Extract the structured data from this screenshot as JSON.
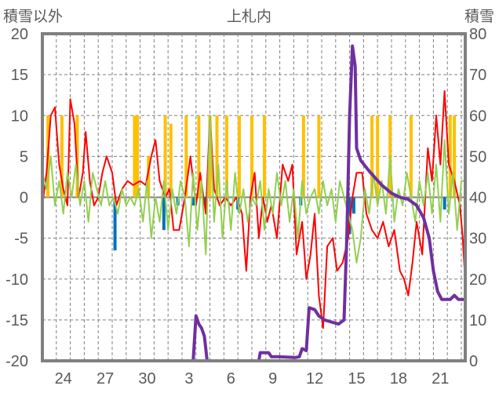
{
  "chart_data": {
    "type": "line",
    "title": "上札内",
    "ylabel_left": "積雪以外",
    "ylabel_right": "積雪",
    "ylim_left": [
      -20,
      20
    ],
    "ylim_right": [
      0,
      80
    ],
    "yticks_left": [
      "20",
      "15",
      "10",
      "5",
      "0",
      "-5",
      "-10",
      "-15",
      "-20"
    ],
    "yticks_right": [
      "80",
      "70",
      "60",
      "50",
      "40",
      "30",
      "20",
      "10",
      "0"
    ],
    "xlim_days": [
      0,
      30.3
    ],
    "xtick_labels": [
      {
        "x": 1.5,
        "label": "24"
      },
      {
        "x": 4.5,
        "label": "27"
      },
      {
        "x": 7.5,
        "label": "30"
      },
      {
        "x": 10.5,
        "label": "3"
      },
      {
        "x": 13.5,
        "label": "6"
      },
      {
        "x": 16.5,
        "label": "9"
      },
      {
        "x": 19.5,
        "label": "12"
      },
      {
        "x": 22.5,
        "label": "15"
      },
      {
        "x": 25.5,
        "label": "18"
      },
      {
        "x": 28.5,
        "label": "21"
      }
    ],
    "grid": true,
    "colors": {
      "red": "#ff0000",
      "green": "#92d050",
      "orange": "#ffc000",
      "blue": "#0070c0",
      "purple": "#7030a0",
      "frame": "#808080"
    },
    "series": [
      {
        "name": "red-series",
        "axis": "left",
        "color": "#ff0000",
        "points": [
          [
            0,
            -1
          ],
          [
            0.3,
            3
          ],
          [
            0.6,
            10
          ],
          [
            0.9,
            11
          ],
          [
            1.2,
            4
          ],
          [
            1.5,
            1
          ],
          [
            1.8,
            -1
          ],
          [
            2,
            12
          ],
          [
            2.3,
            9
          ],
          [
            2.6,
            0
          ],
          [
            2.9,
            3
          ],
          [
            3.1,
            8
          ],
          [
            3.4,
            2
          ],
          [
            3.7,
            -1
          ],
          [
            4,
            0
          ],
          [
            4.3,
            3
          ],
          [
            4.6,
            5
          ],
          [
            5,
            3
          ],
          [
            5.3,
            -1
          ],
          [
            5.7,
            1
          ],
          [
            6.1,
            2
          ],
          [
            6.5,
            1.5
          ],
          [
            7,
            2
          ],
          [
            7.4,
            1.5
          ],
          [
            7.8,
            5
          ],
          [
            8.1,
            7
          ],
          [
            8.4,
            2
          ],
          [
            8.8,
            0
          ],
          [
            9.1,
            1
          ],
          [
            9.4,
            -4
          ],
          [
            9.8,
            -4
          ],
          [
            10.2,
            0
          ],
          [
            10.6,
            5
          ],
          [
            11,
            -1
          ],
          [
            11.3,
            3
          ],
          [
            11.7,
            -2
          ],
          [
            12,
            10
          ],
          [
            12.3,
            1
          ],
          [
            12.7,
            -1
          ],
          [
            13.1,
            0
          ],
          [
            13.5,
            -1
          ],
          [
            13.9,
            0
          ],
          [
            14.3,
            -2
          ],
          [
            14.6,
            -9
          ],
          [
            14.9,
            0
          ],
          [
            15.2,
            3
          ],
          [
            15.5,
            -5
          ],
          [
            15.8,
            0
          ],
          [
            16.1,
            -3
          ],
          [
            16.4,
            -1
          ],
          [
            16.8,
            -5
          ],
          [
            17.2,
            4
          ],
          [
            17.6,
            2
          ],
          [
            17.9,
            4
          ],
          [
            18.2,
            -7
          ],
          [
            18.6,
            -3
          ],
          [
            18.9,
            -10
          ],
          [
            19.2,
            -7
          ],
          [
            19.5,
            -2
          ],
          [
            19.8,
            -12
          ],
          [
            20.1,
            -16
          ],
          [
            20.4,
            -6
          ],
          [
            20.8,
            -5
          ],
          [
            21.1,
            -9
          ],
          [
            21.5,
            -8
          ],
          [
            21.9,
            -5
          ],
          [
            22.2,
            0
          ],
          [
            22.5,
            3
          ],
          [
            22.9,
            3
          ],
          [
            23.2,
            -2
          ],
          [
            23.6,
            -4
          ],
          [
            24,
            -5
          ],
          [
            24.4,
            -3
          ],
          [
            24.8,
            -6
          ],
          [
            25.2,
            -4
          ],
          [
            25.6,
            -9
          ],
          [
            25.9,
            -10
          ],
          [
            26.2,
            -12
          ],
          [
            26.5,
            -8
          ],
          [
            26.8,
            -3
          ],
          [
            27.2,
            -7
          ],
          [
            27.6,
            6
          ],
          [
            27.9,
            2
          ],
          [
            28.2,
            10
          ],
          [
            28.5,
            4
          ],
          [
            28.8,
            13
          ],
          [
            29.1,
            4
          ],
          [
            29.5,
            2
          ],
          [
            29.9,
            -1
          ],
          [
            30.1,
            -5
          ],
          [
            30.3,
            -11
          ]
        ]
      },
      {
        "name": "green-series",
        "axis": "left",
        "color": "#92d050",
        "points": [
          [
            0,
            3
          ],
          [
            0.3,
            1
          ],
          [
            0.6,
            5
          ],
          [
            0.9,
            -1
          ],
          [
            1.2,
            2
          ],
          [
            1.5,
            -2
          ],
          [
            1.8,
            3
          ],
          [
            2.1,
            0
          ],
          [
            2.4,
            4
          ],
          [
            2.7,
            -1
          ],
          [
            3,
            2
          ],
          [
            3.3,
            -3
          ],
          [
            3.6,
            3
          ],
          [
            3.9,
            1
          ],
          [
            4.2,
            -1
          ],
          [
            4.5,
            2
          ],
          [
            4.8,
            -1
          ],
          [
            5.1,
            0
          ],
          [
            5.4,
            -2
          ],
          [
            5.7,
            1
          ],
          [
            6,
            -1
          ],
          [
            6.3,
            0
          ],
          [
            6.6,
            -1
          ],
          [
            6.9,
            1
          ],
          [
            7.2,
            -3
          ],
          [
            7.5,
            2
          ],
          [
            7.8,
            -5
          ],
          [
            8.1,
            0
          ],
          [
            8.4,
            -3
          ],
          [
            8.7,
            2
          ],
          [
            9,
            -4
          ],
          [
            9.3,
            1
          ],
          [
            9.6,
            -2
          ],
          [
            9.9,
            2
          ],
          [
            10.2,
            0
          ],
          [
            10.5,
            -6
          ],
          [
            10.8,
            3
          ],
          [
            11.1,
            -4
          ],
          [
            11.4,
            2
          ],
          [
            11.7,
            -7
          ],
          [
            12,
            10
          ],
          [
            12.3,
            -3
          ],
          [
            12.6,
            4
          ],
          [
            12.9,
            -5
          ],
          [
            13.2,
            2
          ],
          [
            13.5,
            -4
          ],
          [
            13.8,
            3
          ],
          [
            14.1,
            -2
          ],
          [
            14.4,
            1
          ],
          [
            14.7,
            -3
          ],
          [
            15,
            0
          ],
          [
            15.3,
            -1
          ],
          [
            15.6,
            2
          ],
          [
            15.9,
            -4
          ],
          [
            16.2,
            1
          ],
          [
            16.5,
            -2
          ],
          [
            16.8,
            3
          ],
          [
            17.1,
            -1
          ],
          [
            17.4,
            2
          ],
          [
            17.7,
            -3
          ],
          [
            18,
            1
          ],
          [
            18.3,
            -5
          ],
          [
            18.6,
            2
          ],
          [
            18.9,
            -2
          ],
          [
            19.2,
            0
          ],
          [
            19.5,
            1
          ],
          [
            19.8,
            -2
          ],
          [
            20.1,
            2
          ],
          [
            20.4,
            -1
          ],
          [
            20.7,
            1
          ],
          [
            21,
            -3
          ],
          [
            21.3,
            2
          ],
          [
            21.6,
            0
          ],
          [
            21.9,
            -2
          ],
          [
            22.2,
            -4
          ],
          [
            22.5,
            -8
          ],
          [
            22.8,
            -5
          ],
          [
            23.1,
            1
          ],
          [
            23.4,
            -2
          ],
          [
            23.7,
            3
          ],
          [
            24,
            -1
          ],
          [
            24.3,
            2
          ],
          [
            24.6,
            -2
          ],
          [
            24.9,
            5
          ],
          [
            25.2,
            -3
          ],
          [
            25.5,
            1
          ],
          [
            25.8,
            -1
          ],
          [
            26.1,
            3
          ],
          [
            26.4,
            0
          ],
          [
            26.7,
            -3
          ],
          [
            27,
            2
          ],
          [
            27.3,
            -1
          ],
          [
            27.6,
            3
          ],
          [
            27.9,
            -2
          ],
          [
            28.2,
            4
          ],
          [
            28.5,
            -3
          ],
          [
            28.8,
            7
          ],
          [
            29.1,
            -2
          ],
          [
            29.4,
            3
          ],
          [
            29.7,
            -4
          ],
          [
            30,
            2
          ],
          [
            30.3,
            2
          ]
        ]
      },
      {
        "name": "snow-depth-series",
        "axis": "right",
        "color": "#7030a0",
        "points": [
          [
            0,
            0
          ],
          [
            10.8,
            0
          ],
          [
            11.0,
            11
          ],
          [
            11.2,
            9
          ],
          [
            11.4,
            8
          ],
          [
            11.6,
            6
          ],
          [
            11.8,
            0
          ],
          [
            15.5,
            0
          ],
          [
            15.6,
            2
          ],
          [
            16.2,
            2
          ],
          [
            16.4,
            1
          ],
          [
            16.9,
            1
          ],
          [
            18.1,
            0.8
          ],
          [
            18.4,
            1
          ],
          [
            18.6,
            3
          ],
          [
            18.9,
            2.5
          ],
          [
            19.1,
            13
          ],
          [
            19.5,
            12.5
          ],
          [
            19.8,
            11
          ],
          [
            20.2,
            10
          ],
          [
            21.2,
            9
          ],
          [
            21.6,
            10
          ],
          [
            21.8,
            30
          ],
          [
            22.0,
            60
          ],
          [
            22.2,
            77
          ],
          [
            22.4,
            72
          ],
          [
            22.5,
            52
          ],
          [
            22.8,
            49
          ],
          [
            23.5,
            46
          ],
          [
            24.3,
            43
          ],
          [
            25,
            41
          ],
          [
            25.6,
            40
          ],
          [
            26.2,
            39.5
          ],
          [
            26.8,
            38
          ],
          [
            27.3,
            35
          ],
          [
            27.7,
            30
          ],
          [
            28,
            22
          ],
          [
            28.3,
            17
          ],
          [
            28.6,
            15
          ],
          [
            29.2,
            15
          ],
          [
            29.5,
            16
          ],
          [
            29.8,
            15
          ],
          [
            30.3,
            15
          ]
        ]
      },
      {
        "name": "orange-bars",
        "axis": "left",
        "color": "#ffc000",
        "type": "bar",
        "points": [
          [
            0.4,
            10
          ],
          [
            1.4,
            10
          ],
          [
            2.5,
            10
          ],
          [
            6.6,
            10
          ],
          [
            6.8,
            10
          ],
          [
            7.6,
            5
          ],
          [
            8.8,
            10
          ],
          [
            9.2,
            9
          ],
          [
            10.3,
            10
          ],
          [
            11.2,
            10
          ],
          [
            12.0,
            10
          ],
          [
            12.5,
            10
          ],
          [
            13.2,
            10
          ],
          [
            14.1,
            10
          ],
          [
            15.0,
            10
          ],
          [
            15.9,
            10
          ],
          [
            18.7,
            10
          ],
          [
            19.8,
            10
          ],
          [
            23.6,
            10
          ],
          [
            24.0,
            10
          ],
          [
            24.9,
            10
          ],
          [
            26.4,
            10
          ],
          [
            29.2,
            10
          ],
          [
            29.5,
            10
          ]
        ]
      },
      {
        "name": "blue-bars",
        "axis": "left",
        "color": "#0070c0",
        "type": "bar",
        "points": [
          [
            5.2,
            -6.5
          ],
          [
            8.7,
            -4
          ],
          [
            9.7,
            -1
          ],
          [
            10.8,
            -1
          ],
          [
            11.6,
            -1
          ],
          [
            14.0,
            -1.5
          ],
          [
            18.5,
            -1
          ],
          [
            22.0,
            -4.5
          ],
          [
            22.3,
            -2
          ],
          [
            28.8,
            -1.5
          ]
        ]
      }
    ]
  }
}
